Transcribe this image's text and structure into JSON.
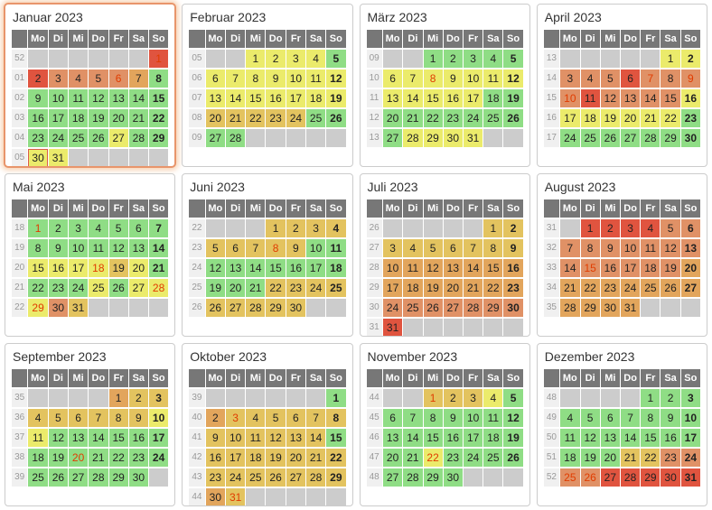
{
  "calendar": {
    "year": "2023",
    "day_headers": [
      "Mo",
      "Di",
      "Mi",
      "Do",
      "Fr",
      "Sa",
      "So"
    ],
    "colors": {
      "g": "#8FDD85",
      "y": "#EBEB6B",
      "t": "#E3C35F",
      "a": "#E2A55C",
      "s": "#E09166",
      "r": "#E0543F",
      "empty": "#CCCCCC",
      "holiday_text": "#E03C00",
      "header_bg": "#777777",
      "week_bg": "#F0F0F0",
      "week_text": "#999999",
      "card_border": "#CCCCCC",
      "highlight_border": "#E8956B",
      "today_border": "#D95C4A"
    },
    "months": [
      {
        "title": "Januar 2023",
        "highlighted": true,
        "weeks": [
          {
            "num": "52",
            "days": [
              "",
              "",
              "",
              "",
              "",
              "",
              "1:r:h"
            ]
          },
          {
            "num": "01",
            "days": [
              "2:r",
              "3:s",
              "4:s",
              "5:s",
              "6:s:h",
              "7:a",
              "8:g"
            ]
          },
          {
            "num": "02",
            "days": [
              "9:g",
              "10:g",
              "11:g",
              "12:g",
              "13:g",
              "14:g",
              "15:g"
            ]
          },
          {
            "num": "03",
            "days": [
              "16:g",
              "17:g",
              "18:g",
              "19:g",
              "20:g",
              "21:g",
              "22:g"
            ]
          },
          {
            "num": "04",
            "days": [
              "23:g",
              "24:g",
              "25:g",
              "26:g",
              "27:y",
              "28:g",
              "29:g"
            ]
          },
          {
            "num": "05",
            "days": [
              "30:y:t",
              "31:y",
              "",
              "",
              "",
              "",
              ""
            ]
          }
        ]
      },
      {
        "title": "Februar 2023",
        "highlighted": false,
        "weeks": [
          {
            "num": "05",
            "days": [
              "",
              "",
              "1:y",
              "2:y",
              "3:y",
              "4:y",
              "5:g"
            ]
          },
          {
            "num": "06",
            "days": [
              "6:y",
              "7:y",
              "8:y",
              "9:y",
              "10:y",
              "11:y",
              "12:y"
            ]
          },
          {
            "num": "07",
            "days": [
              "13:y",
              "14:y",
              "15:y",
              "16:y",
              "17:y",
              "18:y",
              "19:y"
            ]
          },
          {
            "num": "08",
            "days": [
              "20:t",
              "21:t",
              "22:t",
              "23:t",
              "24:t",
              "25:g",
              "26:g"
            ]
          },
          {
            "num": "09",
            "days": [
              "27:g",
              "28:g",
              "",
              "",
              "",
              "",
              ""
            ]
          }
        ]
      },
      {
        "title": "März 2023",
        "highlighted": false,
        "weeks": [
          {
            "num": "09",
            "days": [
              "",
              "",
              "1:g",
              "2:g",
              "3:g",
              "4:g",
              "5:g"
            ]
          },
          {
            "num": "10",
            "days": [
              "6:y",
              "7:y",
              "8:y:h",
              "9:y",
              "10:y",
              "11:y",
              "12:y"
            ]
          },
          {
            "num": "11",
            "days": [
              "13:y",
              "14:y",
              "15:y",
              "16:y",
              "17:y",
              "18:g",
              "19:g"
            ]
          },
          {
            "num": "12",
            "days": [
              "20:g",
              "21:g",
              "22:g",
              "23:g",
              "24:g",
              "25:g",
              "26:g"
            ]
          },
          {
            "num": "13",
            "days": [
              "27:g",
              "28:y",
              "29:y",
              "30:y",
              "31:y",
              "",
              ""
            ]
          }
        ]
      },
      {
        "title": "April 2023",
        "highlighted": false,
        "weeks": [
          {
            "num": "13",
            "days": [
              "",
              "",
              "",
              "",
              "",
              "1:y",
              "2:y"
            ]
          },
          {
            "num": "14",
            "days": [
              "3:s",
              "4:s",
              "5:s",
              "6:r",
              "7:s:h",
              "8:s",
              "9:s:h"
            ]
          },
          {
            "num": "15",
            "days": [
              "10:s:h",
              "11:r",
              "12:s",
              "13:s",
              "14:s",
              "15:s",
              "16:y"
            ]
          },
          {
            "num": "16",
            "days": [
              "17:y",
              "18:y",
              "19:y",
              "20:y",
              "21:y",
              "22:y",
              "23:g"
            ]
          },
          {
            "num": "17",
            "days": [
              "24:g",
              "25:g",
              "26:g",
              "27:g",
              "28:g",
              "29:g",
              "30:g"
            ]
          }
        ]
      },
      {
        "title": "Mai 2023",
        "highlighted": false,
        "weeks": [
          {
            "num": "18",
            "days": [
              "1:g:h",
              "2:g",
              "3:g",
              "4:g",
              "5:g",
              "6:g",
              "7:g"
            ]
          },
          {
            "num": "19",
            "days": [
              "8:g",
              "9:g",
              "10:g",
              "11:g",
              "12:g",
              "13:g",
              "14:g"
            ]
          },
          {
            "num": "20",
            "days": [
              "15:y",
              "16:y",
              "17:y",
              "18:y:h",
              "19:t",
              "20:y",
              "21:g"
            ]
          },
          {
            "num": "21",
            "days": [
              "22:g",
              "23:g",
              "24:g",
              "25:y",
              "26:g",
              "27:y",
              "28:y:h"
            ]
          },
          {
            "num": "22",
            "days": [
              "29:y:h",
              "30:s",
              "31:t",
              "",
              "",
              "",
              ""
            ]
          }
        ]
      },
      {
        "title": "Juni 2023",
        "highlighted": false,
        "weeks": [
          {
            "num": "22",
            "days": [
              "",
              "",
              "",
              "1:t",
              "2:t",
              "3:t",
              "4:t"
            ]
          },
          {
            "num": "23",
            "days": [
              "5:t",
              "6:t",
              "7:t",
              "8:t:h",
              "9:t",
              "10:g",
              "11:g"
            ]
          },
          {
            "num": "24",
            "days": [
              "12:g",
              "13:g",
              "14:g",
              "15:g",
              "16:g",
              "17:g",
              "18:g"
            ]
          },
          {
            "num": "25",
            "days": [
              "19:g",
              "20:g",
              "21:g",
              "22:t",
              "23:t",
              "24:t",
              "25:t"
            ]
          },
          {
            "num": "26",
            "days": [
              "26:t",
              "27:t",
              "28:t",
              "29:t",
              "30:t",
              "",
              ""
            ]
          }
        ]
      },
      {
        "title": "Juli 2023",
        "highlighted": false,
        "weeks": [
          {
            "num": "26",
            "days": [
              "",
              "",
              "",
              "",
              "",
              "1:t",
              "2:t"
            ]
          },
          {
            "num": "27",
            "days": [
              "3:t",
              "4:t",
              "5:t",
              "6:t",
              "7:t",
              "8:t",
              "9:t"
            ]
          },
          {
            "num": "28",
            "days": [
              "10:a",
              "11:a",
              "12:a",
              "13:a",
              "14:a",
              "15:a",
              "16:a"
            ]
          },
          {
            "num": "29",
            "days": [
              "17:a",
              "18:a",
              "19:a",
              "20:a",
              "21:a",
              "22:a",
              "23:a"
            ]
          },
          {
            "num": "30",
            "days": [
              "24:s",
              "25:s",
              "26:s",
              "27:s",
              "28:s",
              "29:s",
              "30:s"
            ]
          },
          {
            "num": "31",
            "days": [
              "31:r",
              "",
              "",
              "",
              "",
              "",
              ""
            ]
          }
        ]
      },
      {
        "title": "August 2023",
        "highlighted": false,
        "weeks": [
          {
            "num": "31",
            "days": [
              "",
              "1:r",
              "2:r",
              "3:r",
              "4:r",
              "5:s",
              "6:s"
            ]
          },
          {
            "num": "32",
            "days": [
              "7:s",
              "8:s",
              "9:s",
              "10:s",
              "11:s",
              "12:s",
              "13:s"
            ]
          },
          {
            "num": "33",
            "days": [
              "14:s",
              "15:s:h",
              "16:s",
              "17:s",
              "18:s",
              "19:s",
              "20:a"
            ]
          },
          {
            "num": "34",
            "days": [
              "21:a",
              "22:a",
              "23:a",
              "24:a",
              "25:a",
              "26:a",
              "27:a"
            ]
          },
          {
            "num": "35",
            "days": [
              "28:a",
              "29:a",
              "30:a",
              "31:a",
              "",
              "",
              ""
            ]
          }
        ]
      },
      {
        "title": "September 2023",
        "highlighted": false,
        "weeks": [
          {
            "num": "35",
            "days": [
              "",
              "",
              "",
              "",
              "1:a",
              "2:t",
              "3:t"
            ]
          },
          {
            "num": "36",
            "days": [
              "4:t",
              "5:t",
              "6:t",
              "7:t",
              "8:t",
              "9:t",
              "10:y"
            ]
          },
          {
            "num": "37",
            "days": [
              "11:y",
              "12:g",
              "13:g",
              "14:g",
              "15:g",
              "16:g",
              "17:g"
            ]
          },
          {
            "num": "38",
            "days": [
              "18:g",
              "19:g",
              "20:g:h",
              "21:g",
              "22:g",
              "23:g",
              "24:g"
            ]
          },
          {
            "num": "39",
            "days": [
              "25:g",
              "26:g",
              "27:g",
              "28:g",
              "29:g",
              "30:g",
              ""
            ]
          }
        ]
      },
      {
        "title": "Oktober 2023",
        "highlighted": false,
        "weeks": [
          {
            "num": "39",
            "days": [
              "",
              "",
              "",
              "",
              "",
              "",
              "1:g"
            ]
          },
          {
            "num": "40",
            "days": [
              "2:a",
              "3:t:h",
              "4:t",
              "5:t",
              "6:t",
              "7:t",
              "8:t"
            ]
          },
          {
            "num": "41",
            "days": [
              "9:t",
              "10:t",
              "11:t",
              "12:t",
              "13:t",
              "14:t",
              "15:g"
            ]
          },
          {
            "num": "42",
            "days": [
              "16:t",
              "17:t",
              "18:t",
              "19:t",
              "20:t",
              "21:t",
              "22:t"
            ]
          },
          {
            "num": "43",
            "days": [
              "23:t",
              "24:t",
              "25:t",
              "26:t",
              "27:t",
              "28:t",
              "29:t"
            ]
          },
          {
            "num": "44",
            "days": [
              "30:a",
              "31:t:h",
              "",
              "",
              "",
              "",
              ""
            ]
          }
        ]
      },
      {
        "title": "November 2023",
        "highlighted": false,
        "weeks": [
          {
            "num": "44",
            "days": [
              "",
              "",
              "1:t:h",
              "2:t",
              "3:t",
              "4:y",
              "5:g"
            ]
          },
          {
            "num": "45",
            "days": [
              "6:g",
              "7:g",
              "8:g",
              "9:g",
              "10:g",
              "11:g",
              "12:g"
            ]
          },
          {
            "num": "46",
            "days": [
              "13:g",
              "14:g",
              "15:g",
              "16:g",
              "17:g",
              "18:g",
              "19:g"
            ]
          },
          {
            "num": "47",
            "days": [
              "20:g",
              "21:g",
              "22:y:h",
              "23:g",
              "24:g",
              "25:g",
              "26:g"
            ]
          },
          {
            "num": "48",
            "days": [
              "27:g",
              "28:g",
              "29:g",
              "30:g",
              "",
              "",
              ""
            ]
          }
        ]
      },
      {
        "title": "Dezember 2023",
        "highlighted": false,
        "weeks": [
          {
            "num": "48",
            "days": [
              "",
              "",
              "",
              "",
              "1:g",
              "2:g",
              "3:g"
            ]
          },
          {
            "num": "49",
            "days": [
              "4:g",
              "5:g",
              "6:g",
              "7:g",
              "8:g",
              "9:g",
              "10:g"
            ]
          },
          {
            "num": "50",
            "days": [
              "11:g",
              "12:g",
              "13:g",
              "14:g",
              "15:g",
              "16:g",
              "17:g"
            ]
          },
          {
            "num": "51",
            "days": [
              "18:g",
              "19:g",
              "20:g",
              "21:t",
              "22:t",
              "23:s",
              "24:s"
            ]
          },
          {
            "num": "52",
            "days": [
              "25:s:h",
              "26:s:h",
              "27:r",
              "28:r",
              "29:r",
              "30:r",
              "31:r"
            ]
          }
        ]
      }
    ]
  }
}
